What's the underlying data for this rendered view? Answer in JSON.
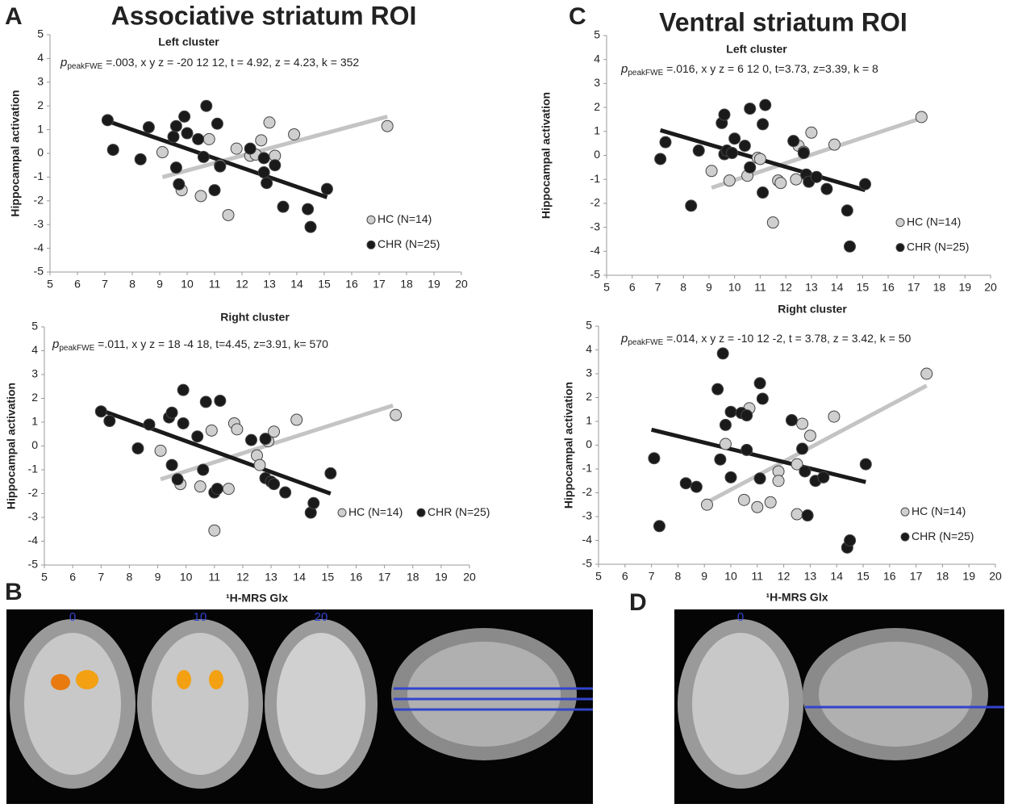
{
  "panels": {
    "a": "A",
    "b": "B",
    "c": "C",
    "d": "D"
  },
  "titles": [
    "Associative striatum ROI",
    "Ventral striatum ROI"
  ],
  "brain_slices": {
    "b": [
      "0",
      "10",
      "20"
    ],
    "d": [
      "0"
    ]
  },
  "chart_data": [
    {
      "type": "scatter",
      "subtitle": "Left cluster",
      "annotation_p": "p",
      "annotation_sub": "peakFWE",
      "annotation": " =.003, x y z = -20 12 12, t = 4.92, z = 4.23, k = 352",
      "y_label": "Hippocampal activation",
      "xlim": [
        5,
        20
      ],
      "ylim": [
        -5,
        5
      ],
      "xticks": [
        5,
        6,
        7,
        8,
        9,
        10,
        11,
        12,
        13,
        14,
        15,
        16,
        17,
        18,
        19,
        20
      ],
      "yticks": [
        -5,
        -4,
        -3,
        -2,
        -1,
        0,
        1,
        2,
        3,
        4,
        5
      ],
      "legend": "lower-right",
      "legend_ncol": 1,
      "series": [
        {
          "name": "HC (N=14)",
          "color": "#cfcfcf",
          "x": [
            9.1,
            9.8,
            10.5,
            10.8,
            11.2,
            11.5,
            11.8,
            12.3,
            12.5,
            12.7,
            13.0,
            13.2,
            13.9,
            17.3
          ],
          "values": [
            0.05,
            -1.55,
            -1.8,
            0.6,
            -0.5,
            -2.6,
            0.2,
            -0.1,
            -0.05,
            0.55,
            1.3,
            -0.1,
            0.8,
            1.15
          ],
          "trendline": {
            "x": [
              9.1,
              17.3
            ],
            "values": [
              -1.0,
              1.55
            ]
          }
        },
        {
          "name": "CHR (N=25)",
          "color": "#1a1a1a",
          "x": [
            7.1,
            7.3,
            8.3,
            8.6,
            9.5,
            9.6,
            9.7,
            9.6,
            9.9,
            10.0,
            10.4,
            10.6,
            10.7,
            11.1,
            11.2,
            11.0,
            12.3,
            12.8,
            12.8,
            12.9,
            13.2,
            13.5,
            14.4,
            14.5,
            15.1
          ],
          "values": [
            1.4,
            0.15,
            -0.25,
            1.1,
            0.7,
            1.15,
            -1.3,
            -0.6,
            1.55,
            0.85,
            0.6,
            -0.15,
            2.0,
            1.25,
            -0.55,
            -1.55,
            0.2,
            -0.2,
            -0.8,
            -1.25,
            -0.5,
            -2.25,
            -2.35,
            -3.1,
            -1.5
          ],
          "trendline": {
            "x": [
              7.0,
              15.1
            ],
            "values": [
              1.4,
              -1.85
            ]
          }
        }
      ]
    },
    {
      "type": "scatter",
      "subtitle": "Right cluster",
      "annotation_p": "p",
      "annotation_sub": "peakFWE",
      "annotation": " =.011, x y z = 18 -4 18, t=4.45, z=3.91, k= 570",
      "y_label": "Hippocampal activation",
      "x_label": "¹H-MRS Glx",
      "xlim": [
        5,
        20
      ],
      "ylim": [
        -5,
        5
      ],
      "xticks": [
        5,
        6,
        7,
        8,
        9,
        10,
        11,
        12,
        13,
        14,
        15,
        16,
        17,
        18,
        19,
        20
      ],
      "yticks": [
        -5,
        -4,
        -3,
        -2,
        -1,
        0,
        1,
        2,
        3,
        4,
        5
      ],
      "legend": "lower-right",
      "legend_ncol": 2,
      "series": [
        {
          "name": "HC (N=14)",
          "color": "#cfcfcf",
          "x": [
            9.1,
            9.8,
            10.5,
            10.9,
            11.0,
            11.5,
            11.7,
            11.8,
            12.5,
            12.6,
            12.9,
            13.1,
            13.9,
            17.4
          ],
          "values": [
            -0.2,
            -1.6,
            -1.7,
            0.65,
            -3.55,
            -1.8,
            0.95,
            0.7,
            -0.4,
            -0.8,
            0.2,
            0.6,
            1.1,
            1.3
          ],
          "trendline": {
            "x": [
              9.1,
              17.3
            ],
            "values": [
              -1.4,
              1.7
            ]
          }
        },
        {
          "name": "CHR (N=25)",
          "color": "#1a1a1a",
          "x": [
            7.0,
            7.3,
            8.3,
            8.7,
            9.4,
            9.5,
            9.5,
            9.7,
            9.9,
            9.9,
            10.4,
            10.6,
            10.7,
            11.0,
            11.1,
            11.2,
            12.3,
            12.8,
            12.8,
            13.0,
            13.1,
            13.5,
            14.4,
            14.5,
            15.1
          ],
          "values": [
            1.45,
            1.05,
            -0.1,
            0.9,
            1.2,
            1.4,
            -0.8,
            -1.4,
            0.95,
            2.35,
            0.4,
            -1.0,
            1.85,
            -1.95,
            -1.8,
            1.9,
            0.25,
            0.3,
            -1.35,
            -1.5,
            -1.6,
            -1.95,
            -2.8,
            -2.4,
            -1.15
          ],
          "trendline": {
            "x": [
              7.0,
              15.1
            ],
            "values": [
              1.5,
              -2.0
            ]
          }
        }
      ]
    },
    {
      "type": "scatter",
      "subtitle": "Left cluster",
      "annotation_p": "p",
      "annotation_sub": "peakFWE",
      "annotation": " =.016, x y z = 6 12 0, t=3.73, z=3.39, k = 8",
      "y_label": "Hippocampal activation",
      "xlim": [
        5,
        20
      ],
      "ylim": [
        -5,
        5
      ],
      "xticks": [
        5,
        6,
        7,
        8,
        9,
        10,
        11,
        12,
        13,
        14,
        15,
        16,
        17,
        18,
        19,
        20
      ],
      "yticks": [
        -5,
        -4,
        -3,
        -2,
        -1,
        0,
        1,
        2,
        3,
        4,
        5
      ],
      "legend": "lower-right",
      "legend_ncol": 1,
      "series": [
        {
          "name": "HC (N=14)",
          "color": "#cfcfcf",
          "x": [
            9.1,
            9.8,
            10.5,
            10.9,
            11.0,
            11.5,
            11.7,
            11.8,
            12.4,
            12.5,
            12.7,
            13.0,
            13.9,
            17.3
          ],
          "values": [
            -0.65,
            -1.05,
            -0.85,
            -0.1,
            -0.15,
            -2.8,
            -1.05,
            -1.15,
            -1.0,
            0.4,
            0.15,
            0.95,
            0.45,
            1.6
          ],
          "trendline": {
            "x": [
              9.1,
              17.3
            ],
            "values": [
              -1.35,
              1.55
            ]
          }
        },
        {
          "name": "CHR (N=25)",
          "color": "#1a1a1a",
          "x": [
            7.1,
            7.3,
            8.3,
            8.6,
            9.5,
            9.6,
            9.6,
            9.7,
            9.9,
            10.0,
            10.4,
            10.6,
            10.6,
            11.1,
            11.2,
            11.1,
            12.3,
            12.7,
            12.8,
            12.9,
            13.2,
            13.6,
            14.4,
            14.5,
            15.1
          ],
          "values": [
            -0.15,
            0.55,
            -2.1,
            0.2,
            1.35,
            1.7,
            0.05,
            0.2,
            0.1,
            0.7,
            0.4,
            -0.5,
            1.95,
            1.3,
            2.1,
            -1.55,
            0.6,
            0.1,
            -0.8,
            -1.1,
            -0.9,
            -1.4,
            -2.3,
            -3.8,
            -1.2
          ],
          "trendline": {
            "x": [
              7.1,
              15.1
            ],
            "values": [
              1.05,
              -1.45
            ]
          }
        }
      ]
    },
    {
      "type": "scatter",
      "subtitle": "Right cluster",
      "annotation_p": "p",
      "annotation_sub": "peakFWE",
      "annotation": " =.014, x y z = -10 12 -2, t = 3.78, z = 3.42, k = 50",
      "y_label": "Hippocampal activation",
      "x_label": "¹H-MRS Glx",
      "xlim": [
        5,
        20
      ],
      "ylim": [
        -5,
        5
      ],
      "xticks": [
        5,
        6,
        7,
        8,
        9,
        10,
        11,
        12,
        13,
        14,
        15,
        16,
        17,
        18,
        19,
        20
      ],
      "yticks": [
        -5,
        -4,
        -3,
        -2,
        -1,
        0,
        1,
        2,
        3,
        4,
        5
      ],
      "legend": "lower-right",
      "legend_ncol": 1,
      "series": [
        {
          "name": "HC (N=14)",
          "color": "#cfcfcf",
          "x": [
            9.1,
            9.8,
            10.5,
            10.7,
            11.0,
            11.5,
            11.8,
            11.8,
            12.5,
            12.5,
            12.7,
            13.0,
            13.9,
            17.4
          ],
          "values": [
            -2.5,
            0.05,
            -2.3,
            1.55,
            -2.6,
            -2.4,
            -1.1,
            -1.5,
            -0.8,
            -2.9,
            0.9,
            0.4,
            1.2,
            3.0
          ],
          "trendline": {
            "x": [
              9.1,
              17.4
            ],
            "values": [
              -2.4,
              2.5
            ]
          }
        },
        {
          "name": "CHR (N=25)",
          "color": "#1a1a1a",
          "x": [
            7.1,
            7.3,
            8.3,
            8.7,
            9.5,
            9.6,
            9.7,
            9.8,
            10.0,
            10.0,
            10.4,
            10.6,
            10.6,
            11.1,
            11.2,
            11.1,
            12.3,
            12.7,
            12.8,
            12.9,
            13.2,
            13.5,
            14.4,
            14.5,
            15.1
          ],
          "values": [
            -0.55,
            -3.4,
            -1.6,
            -1.75,
            2.35,
            -0.6,
            3.85,
            0.85,
            1.4,
            -1.35,
            1.35,
            1.25,
            -0.2,
            2.6,
            1.95,
            -1.4,
            1.05,
            -0.15,
            -1.1,
            -2.95,
            -1.5,
            -1.35,
            -4.3,
            -4.0,
            -0.8
          ],
          "trendline": {
            "x": [
              7.0,
              15.1
            ],
            "values": [
              0.65,
              -1.55
            ]
          }
        }
      ]
    }
  ]
}
